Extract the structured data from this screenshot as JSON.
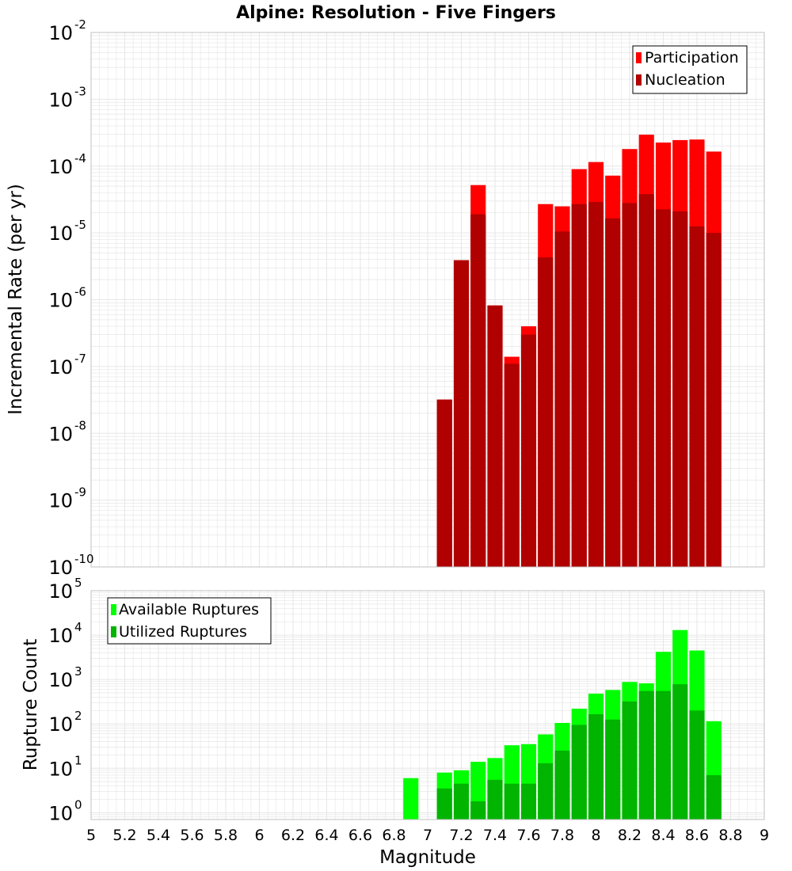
{
  "title": "Alpine: Resolution - Five Fingers",
  "xlabel": "Magnitude",
  "x_ticks": [
    "5",
    "5.2",
    "5.4",
    "5.6",
    "5.8",
    "6",
    "6.2",
    "6.4",
    "6.6",
    "6.8",
    "7",
    "7.2",
    "7.4",
    "7.6",
    "7.8",
    "8",
    "8.2",
    "8.4",
    "8.6",
    "8.8",
    "9"
  ],
  "colors": {
    "participation": "#ff0000",
    "nucleation": "#b00000",
    "available": "#00ff00",
    "utilized": "#00b400",
    "grid": "#e6e6e6",
    "frame": "#c0c0c0"
  },
  "chart_data": [
    {
      "type": "bar",
      "ylabel": "Incremental Rate (per yr)",
      "yscale": "log",
      "ylim": [
        1e-10,
        0.01
      ],
      "y_tick_bases": [
        "10",
        "10",
        "10",
        "10",
        "10",
        "10",
        "10",
        "10",
        "10"
      ],
      "y_tick_exps": [
        "-10",
        "-9",
        "-8",
        "-7",
        "-6",
        "-5",
        "-4",
        "-3",
        "-2"
      ],
      "legend": {
        "position": "top-right",
        "entries": [
          "Participation",
          "Nucleation"
        ]
      },
      "x": [
        7.1,
        7.2,
        7.3,
        7.4,
        7.5,
        7.6,
        7.7,
        7.8,
        7.9,
        8.0,
        8.1,
        8.2,
        8.3,
        8.4,
        8.5,
        8.6,
        8.7
      ],
      "series": [
        {
          "name": "Participation",
          "values": [
            3.2e-08,
            3.9e-06,
            5.2e-05,
            8.2e-07,
            1.4e-07,
            4e-07,
            2.7e-05,
            2.5e-05,
            9e-05,
            0.000115,
            7.2e-05,
            0.00018,
            0.000295,
            0.000225,
            0.000245,
            0.00025,
            0.000165
          ]
        },
        {
          "name": "Nucleation",
          "values": [
            3.2e-08,
            3.9e-06,
            1.9e-05,
            8.2e-07,
            1.1e-07,
            3e-07,
            4.3e-06,
            1.05e-05,
            2.7e-05,
            2.9e-05,
            1.65e-05,
            2.8e-05,
            3.8e-05,
            2.25e-05,
            2.1e-05,
            1.25e-05,
            1e-05
          ]
        }
      ]
    },
    {
      "type": "bar",
      "ylabel": "Rupture Count",
      "yscale": "log",
      "ylim": [
        0.7,
        100000
      ],
      "y_tick_bases": [
        "10",
        "10",
        "10",
        "10",
        "10",
        "10"
      ],
      "y_tick_exps": [
        "0",
        "1",
        "2",
        "3",
        "4",
        "5"
      ],
      "legend": {
        "position": "top-left",
        "entries": [
          "Available Ruptures",
          "Utilized Ruptures"
        ]
      },
      "x": [
        6.9,
        7.1,
        7.2,
        7.3,
        7.4,
        7.5,
        7.6,
        7.7,
        7.8,
        7.9,
        8.0,
        8.1,
        8.2,
        8.3,
        8.4,
        8.5,
        8.6,
        8.7
      ],
      "series": [
        {
          "name": "Available Ruptures",
          "values": [
            6,
            8,
            9,
            14,
            17,
            33,
            35,
            58,
            105,
            220,
            480,
            580,
            880,
            820,
            4200,
            13000,
            4500,
            115
          ]
        },
        {
          "name": "Utilized Ruptures",
          "values": [
            0,
            3.5,
            4.5,
            1.8,
            5.5,
            4.5,
            4.5,
            13,
            25,
            95,
            165,
            125,
            320,
            550,
            550,
            780,
            200,
            7
          ]
        }
      ]
    }
  ]
}
